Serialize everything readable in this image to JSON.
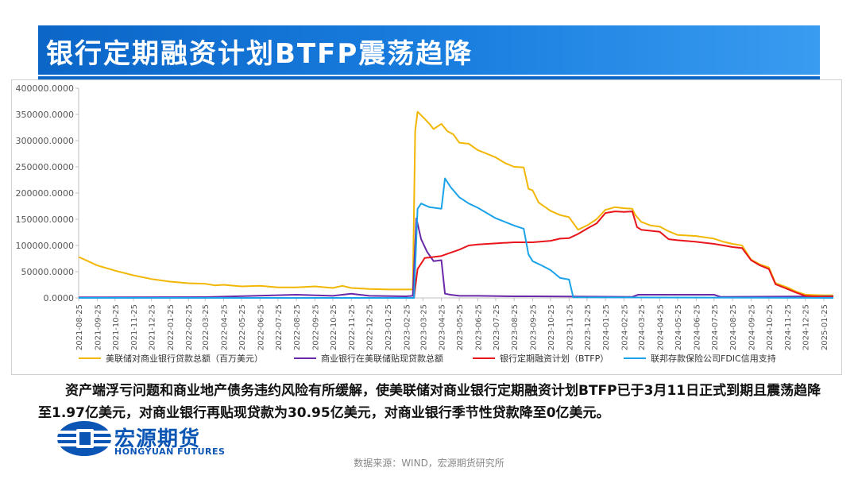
{
  "page": {
    "title": "银行定期融资计划BTFP震荡趋降",
    "body_text": "资产端浮亏问题和商业地产债务违约风险有所缓解，使美联储对商业银行定期融资计划BTFP已于3月11日正式到期且震荡趋降至1.97亿美元，对商业银行再贴现贷款为30.95亿美元，对商业银行季节性贷款降至0亿美元。",
    "logo_cn": "宏源期货",
    "logo_en": "HONGYUAN FUTURES",
    "source": "数据来源：WIND，宏源期货研究所"
  },
  "chart_data": {
    "type": "line",
    "ylim": [
      0,
      400000
    ],
    "yticks": [
      "0.0000",
      "50000.0000",
      "100000.0000",
      "150000.0000",
      "200000.0000",
      "250000.0000",
      "300000.0000",
      "350000.0000",
      "400000.0000"
    ],
    "xticks": [
      "2021-08-25",
      "2021-09-25",
      "2021-10-25",
      "2021-11-25",
      "2021-12-25",
      "2022-01-25",
      "2022-02-25",
      "2022-03-25",
      "2022-04-25",
      "2022-05-25",
      "2022-06-25",
      "2022-07-25",
      "2022-08-25",
      "2022-09-25",
      "2022-10-25",
      "2022-11-25",
      "2022-12-25",
      "2023-01-25",
      "2023-02-25",
      "2023-03-25",
      "2023-04-25",
      "2023-05-25",
      "2023-06-25",
      "2023-07-25",
      "2023-08-25",
      "2023-09-25",
      "2023-10-25",
      "2023-11-25",
      "2023-12-25",
      "2024-01-25",
      "2024-02-25",
      "2024-03-25",
      "2024-04-25",
      "2024-05-25",
      "2024-06-25",
      "2024-07-25",
      "2024-08-25",
      "2024-09-25",
      "2024-10-25",
      "2024-11-25",
      "2024-12-25",
      "2025-01-25"
    ],
    "grid": false,
    "legend_position": "bottom",
    "series": [
      {
        "name": "美联储对商业银行贷款总额（百万美元）",
        "color": "#f2b705",
        "points": [
          [
            "2021-08-25",
            78000
          ],
          [
            "2021-09-10",
            70000
          ],
          [
            "2021-09-25",
            62000
          ],
          [
            "2021-10-25",
            52000
          ],
          [
            "2021-11-25",
            43000
          ],
          [
            "2021-12-25",
            36000
          ],
          [
            "2022-01-25",
            31000
          ],
          [
            "2022-02-25",
            28000
          ],
          [
            "2022-03-25",
            27000
          ],
          [
            "2022-04-10",
            24000
          ],
          [
            "2022-04-25",
            25000
          ],
          [
            "2022-05-25",
            22000
          ],
          [
            "2022-06-25",
            23000
          ],
          [
            "2022-07-25",
            20000
          ],
          [
            "2022-08-25",
            20000
          ],
          [
            "2022-09-25",
            22000
          ],
          [
            "2022-10-25",
            19000
          ],
          [
            "2022-11-10",
            23000
          ],
          [
            "2022-11-25",
            19000
          ],
          [
            "2022-12-25",
            17000
          ],
          [
            "2023-01-25",
            16000
          ],
          [
            "2023-02-25",
            16000
          ],
          [
            "2023-03-08",
            16000
          ],
          [
            "2023-03-12",
            318000
          ],
          [
            "2023-03-16",
            355000
          ],
          [
            "2023-03-25",
            345000
          ],
          [
            "2023-04-05",
            332000
          ],
          [
            "2023-04-12",
            322000
          ],
          [
            "2023-04-25",
            332000
          ],
          [
            "2023-05-05",
            318000
          ],
          [
            "2023-05-15",
            312000
          ],
          [
            "2023-05-25",
            296000
          ],
          [
            "2023-06-10",
            294000
          ],
          [
            "2023-06-25",
            282000
          ],
          [
            "2023-07-25",
            268000
          ],
          [
            "2023-08-10",
            257000
          ],
          [
            "2023-08-25",
            250000
          ],
          [
            "2023-09-10",
            249000
          ],
          [
            "2023-09-18",
            208000
          ],
          [
            "2023-09-25",
            205000
          ],
          [
            "2023-10-05",
            182000
          ],
          [
            "2023-10-25",
            166000
          ],
          [
            "2023-11-10",
            158000
          ],
          [
            "2023-11-25",
            154000
          ],
          [
            "2023-12-10",
            130000
          ],
          [
            "2023-12-25",
            138000
          ],
          [
            "2024-01-10",
            150000
          ],
          [
            "2024-01-25",
            168000
          ],
          [
            "2024-02-10",
            173000
          ],
          [
            "2024-02-25",
            171000
          ],
          [
            "2024-03-10",
            170000
          ],
          [
            "2024-03-15",
            158000
          ],
          [
            "2024-03-25",
            145000
          ],
          [
            "2024-04-10",
            138000
          ],
          [
            "2024-04-25",
            136000
          ],
          [
            "2024-05-10",
            127000
          ],
          [
            "2024-05-25",
            120000
          ],
          [
            "2024-06-25",
            118000
          ],
          [
            "2024-07-25",
            113000
          ],
          [
            "2024-08-10",
            107000
          ],
          [
            "2024-08-25",
            103000
          ],
          [
            "2024-09-10",
            100000
          ],
          [
            "2024-09-25",
            73000
          ],
          [
            "2024-10-10",
            64000
          ],
          [
            "2024-10-25",
            58000
          ],
          [
            "2024-11-05",
            28000
          ],
          [
            "2024-11-25",
            20000
          ],
          [
            "2024-12-10",
            12000
          ],
          [
            "2024-12-25",
            6000
          ],
          [
            "2025-01-25",
            5000
          ],
          [
            "2025-02-10",
            5000
          ]
        ]
      },
      {
        "name": "商业银行在美联储贴现贷款总额",
        "color": "#6a2aa8",
        "points": [
          [
            "2021-08-25",
            1000
          ],
          [
            "2022-03-25",
            1500
          ],
          [
            "2022-08-25",
            6000
          ],
          [
            "2022-10-25",
            4000
          ],
          [
            "2022-11-25",
            8000
          ],
          [
            "2022-12-25",
            4000
          ],
          [
            "2023-02-25",
            3000
          ],
          [
            "2023-03-08",
            4000
          ],
          [
            "2023-03-14",
            152000
          ],
          [
            "2023-03-22",
            112000
          ],
          [
            "2023-04-01",
            88000
          ],
          [
            "2023-04-12",
            70000
          ],
          [
            "2023-04-25",
            72000
          ],
          [
            "2023-05-01",
            8000
          ],
          [
            "2023-05-10",
            6000
          ],
          [
            "2023-05-25",
            4000
          ],
          [
            "2023-06-25",
            4000
          ],
          [
            "2023-08-25",
            3000
          ],
          [
            "2023-09-25",
            3000
          ],
          [
            "2023-12-25",
            2500
          ],
          [
            "2024-03-10",
            2000
          ],
          [
            "2024-03-20",
            6000
          ],
          [
            "2024-07-25",
            6000
          ],
          [
            "2024-08-05",
            2000
          ],
          [
            "2025-02-10",
            3000
          ]
        ]
      },
      {
        "name": "银行定期融资计划（BTFP）",
        "color": "#e8161b",
        "points": [
          [
            "2021-08-25",
            0
          ],
          [
            "2023-03-10",
            0
          ],
          [
            "2023-03-16",
            55000
          ],
          [
            "2023-03-28",
            76000
          ],
          [
            "2023-04-12",
            78000
          ],
          [
            "2023-04-25",
            80000
          ],
          [
            "2023-05-10",
            86000
          ],
          [
            "2023-05-25",
            92000
          ],
          [
            "2023-06-10",
            100000
          ],
          [
            "2023-06-25",
            102000
          ],
          [
            "2023-07-25",
            104000
          ],
          [
            "2023-08-25",
            106000
          ],
          [
            "2023-09-25",
            106000
          ],
          [
            "2023-10-25",
            109000
          ],
          [
            "2023-11-10",
            113000
          ],
          [
            "2023-11-25",
            114000
          ],
          [
            "2023-12-10",
            122000
          ],
          [
            "2023-12-25",
            132000
          ],
          [
            "2024-01-10",
            142000
          ],
          [
            "2024-01-25",
            162000
          ],
          [
            "2024-02-10",
            165000
          ],
          [
            "2024-02-25",
            164000
          ],
          [
            "2024-03-10",
            165000
          ],
          [
            "2024-03-18",
            135000
          ],
          [
            "2024-03-25",
            130000
          ],
          [
            "2024-04-25",
            126000
          ],
          [
            "2024-05-10",
            112000
          ],
          [
            "2024-05-25",
            110000
          ],
          [
            "2024-06-25",
            107000
          ],
          [
            "2024-07-25",
            103000
          ],
          [
            "2024-08-10",
            100000
          ],
          [
            "2024-08-25",
            97000
          ],
          [
            "2024-09-10",
            95000
          ],
          [
            "2024-09-25",
            72000
          ],
          [
            "2024-10-10",
            62000
          ],
          [
            "2024-10-25",
            55000
          ],
          [
            "2024-11-05",
            26000
          ],
          [
            "2024-11-25",
            17000
          ],
          [
            "2024-12-10",
            10000
          ],
          [
            "2024-12-25",
            4000
          ],
          [
            "2025-01-25",
            2000
          ],
          [
            "2025-02-10",
            2000
          ]
        ]
      },
      {
        "name": "联邦存款保险公司FDIC信用支持",
        "color": "#1aa3e8",
        "points": [
          [
            "2021-08-25",
            0
          ],
          [
            "2023-03-10",
            0
          ],
          [
            "2023-03-16",
            170000
          ],
          [
            "2023-03-22",
            180000
          ],
          [
            "2023-04-05",
            173000
          ],
          [
            "2023-04-25",
            170000
          ],
          [
            "2023-05-01",
            228000
          ],
          [
            "2023-05-10",
            212000
          ],
          [
            "2023-05-25",
            192000
          ],
          [
            "2023-06-10",
            180000
          ],
          [
            "2023-06-25",
            172000
          ],
          [
            "2023-07-25",
            152000
          ],
          [
            "2023-08-25",
            138000
          ],
          [
            "2023-09-10",
            132000
          ],
          [
            "2023-09-18",
            83000
          ],
          [
            "2023-09-25",
            70000
          ],
          [
            "2023-10-10",
            62000
          ],
          [
            "2023-10-25",
            53000
          ],
          [
            "2023-11-10",
            38000
          ],
          [
            "2023-11-25",
            35000
          ],
          [
            "2023-12-02",
            1000
          ],
          [
            "2025-02-10",
            0
          ]
        ]
      }
    ]
  }
}
